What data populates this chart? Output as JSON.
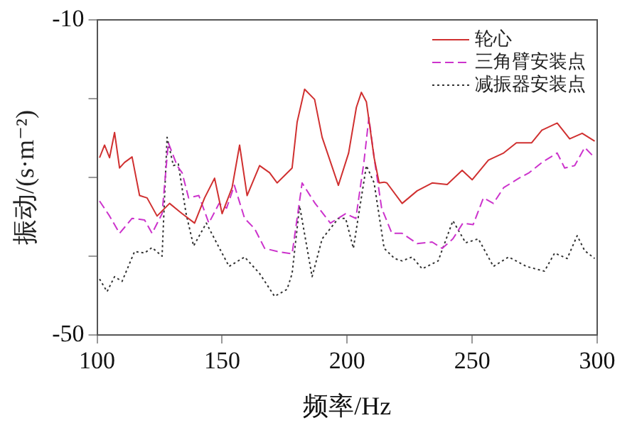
{
  "chart_data": {
    "type": "line",
    "xlabel": "频率/Hz",
    "ylabel": "振动/(s·m⁻²)",
    "xlim": [
      100,
      300
    ],
    "xticks": [
      100,
      150,
      200,
      250,
      300
    ],
    "ylim": [
      -50,
      -10
    ],
    "yticks": [
      -10,
      {
        "value": -20,
        "label": null
      },
      {
        "value": -30,
        "label": null
      },
      {
        "value": -40,
        "label": null
      },
      -50
    ],
    "legend": "top right",
    "marker": "none",
    "grid": false,
    "series": [
      {
        "name": "轮心",
        "color": "#d03030",
        "line_style": "solid",
        "x": [
          101,
          103,
          105,
          107,
          109,
          111,
          114,
          117,
          120,
          124,
          129,
          134,
          139,
          143,
          147,
          150,
          154,
          157,
          160,
          165,
          169,
          172,
          178,
          180,
          183,
          187,
          190,
          196.5,
          200.6,
          203.7,
          205.7,
          207.7,
          210.8,
          212.8,
          214.8,
          215.9,
          222,
          228,
          234,
          240,
          246,
          250,
          256.5,
          262.6,
          267.7,
          273.8,
          277.9,
          284,
          289,
          294,
          299
        ],
        "values": [
          -27.5,
          -25.9,
          -27.5,
          -24.3,
          -28.8,
          -28.1,
          -27.4,
          -32.3,
          -32.6,
          -34.9,
          -33.3,
          -34.6,
          -35.8,
          -32.6,
          -30.1,
          -34.6,
          -31.3,
          -25.9,
          -32.3,
          -28.5,
          -29.4,
          -30.7,
          -28.8,
          -23,
          -18.8,
          -20.1,
          -24.9,
          -31,
          -26.9,
          -21.1,
          -19.2,
          -20.4,
          -27.5,
          -30.7,
          -30.6,
          -30.7,
          -33.3,
          -31.7,
          -30.7,
          -30.9,
          -29.1,
          -30.3,
          -27.8,
          -26.9,
          -25.6,
          -25.6,
          -24,
          -23.1,
          -25.1,
          -24.4,
          -25.4
        ]
      },
      {
        "name": "三角臂安装点",
        "color": "#cc33cc",
        "line_style": "dashed",
        "x": [
          101,
          105,
          109,
          114,
          119,
          122,
          126,
          128.5,
          132,
          134,
          136.6,
          140.7,
          144.7,
          148.8,
          151.8,
          154.9,
          159,
          163,
          167,
          172,
          178,
          182,
          187.2,
          193.3,
          199.4,
          203.5,
          206.7,
          208.7,
          210.8,
          213.8,
          217.9,
          222,
          228,
          234,
          238,
          242.3,
          246.3,
          250.4,
          254.5,
          258.5,
          262.6,
          268.7,
          272.8,
          277.9,
          284,
          287,
          291,
          295,
          299
        ],
        "values": [
          -33,
          -34.9,
          -37.1,
          -35.2,
          -35.4,
          -37.1,
          -34.6,
          -25.6,
          -28.5,
          -29.4,
          -32.6,
          -32.3,
          -35.8,
          -33.3,
          -33.9,
          -31,
          -35.2,
          -36.5,
          -39,
          -39.4,
          -39.7,
          -30.7,
          -33.3,
          -35.8,
          -34.6,
          -35.2,
          -28.1,
          -22.4,
          -27.5,
          -33.9,
          -37.1,
          -37.1,
          -38.4,
          -38.2,
          -39,
          -37.8,
          -35.8,
          -36,
          -32.6,
          -33.3,
          -31.3,
          -30.1,
          -29.4,
          -28.1,
          -26.9,
          -28.8,
          -28.5,
          -26.2,
          -27.5
        ]
      },
      {
        "name": "减振器安装点",
        "color": "#333333",
        "line_style": "dotted",
        "x": [
          101,
          104,
          107,
          110,
          115,
          119,
          122,
          126,
          128,
          130.5,
          132.5,
          135.6,
          138.6,
          143.7,
          147.8,
          152.8,
          159,
          165,
          171,
          176,
          178,
          181,
          186,
          190,
          196.5,
          199.4,
          202.5,
          207.7,
          210.8,
          214.8,
          219,
          222,
          226,
          230,
          236.4,
          242.3,
          247.4,
          252.5,
          258.5,
          264.6,
          271.7,
          278.9,
          283,
          288,
          292,
          295,
          299
        ],
        "values": [
          -42.9,
          -44.5,
          -42.6,
          -43.2,
          -39.4,
          -39.6,
          -38.9,
          -40,
          -24.9,
          -28.5,
          -28.3,
          -34.6,
          -38.7,
          -35.8,
          -38.3,
          -41.3,
          -40.1,
          -42.2,
          -45.1,
          -44.2,
          -42.2,
          -33.6,
          -42.6,
          -37.8,
          -35.2,
          -35.2,
          -39,
          -28.5,
          -30.7,
          -39,
          -40.3,
          -40.6,
          -40.1,
          -41.6,
          -40.6,
          -35.5,
          -38.3,
          -37.8,
          -41.3,
          -40.1,
          -41.3,
          -41.9,
          -39.6,
          -40.3,
          -37.4,
          -39.3,
          -40.3
        ]
      }
    ]
  }
}
